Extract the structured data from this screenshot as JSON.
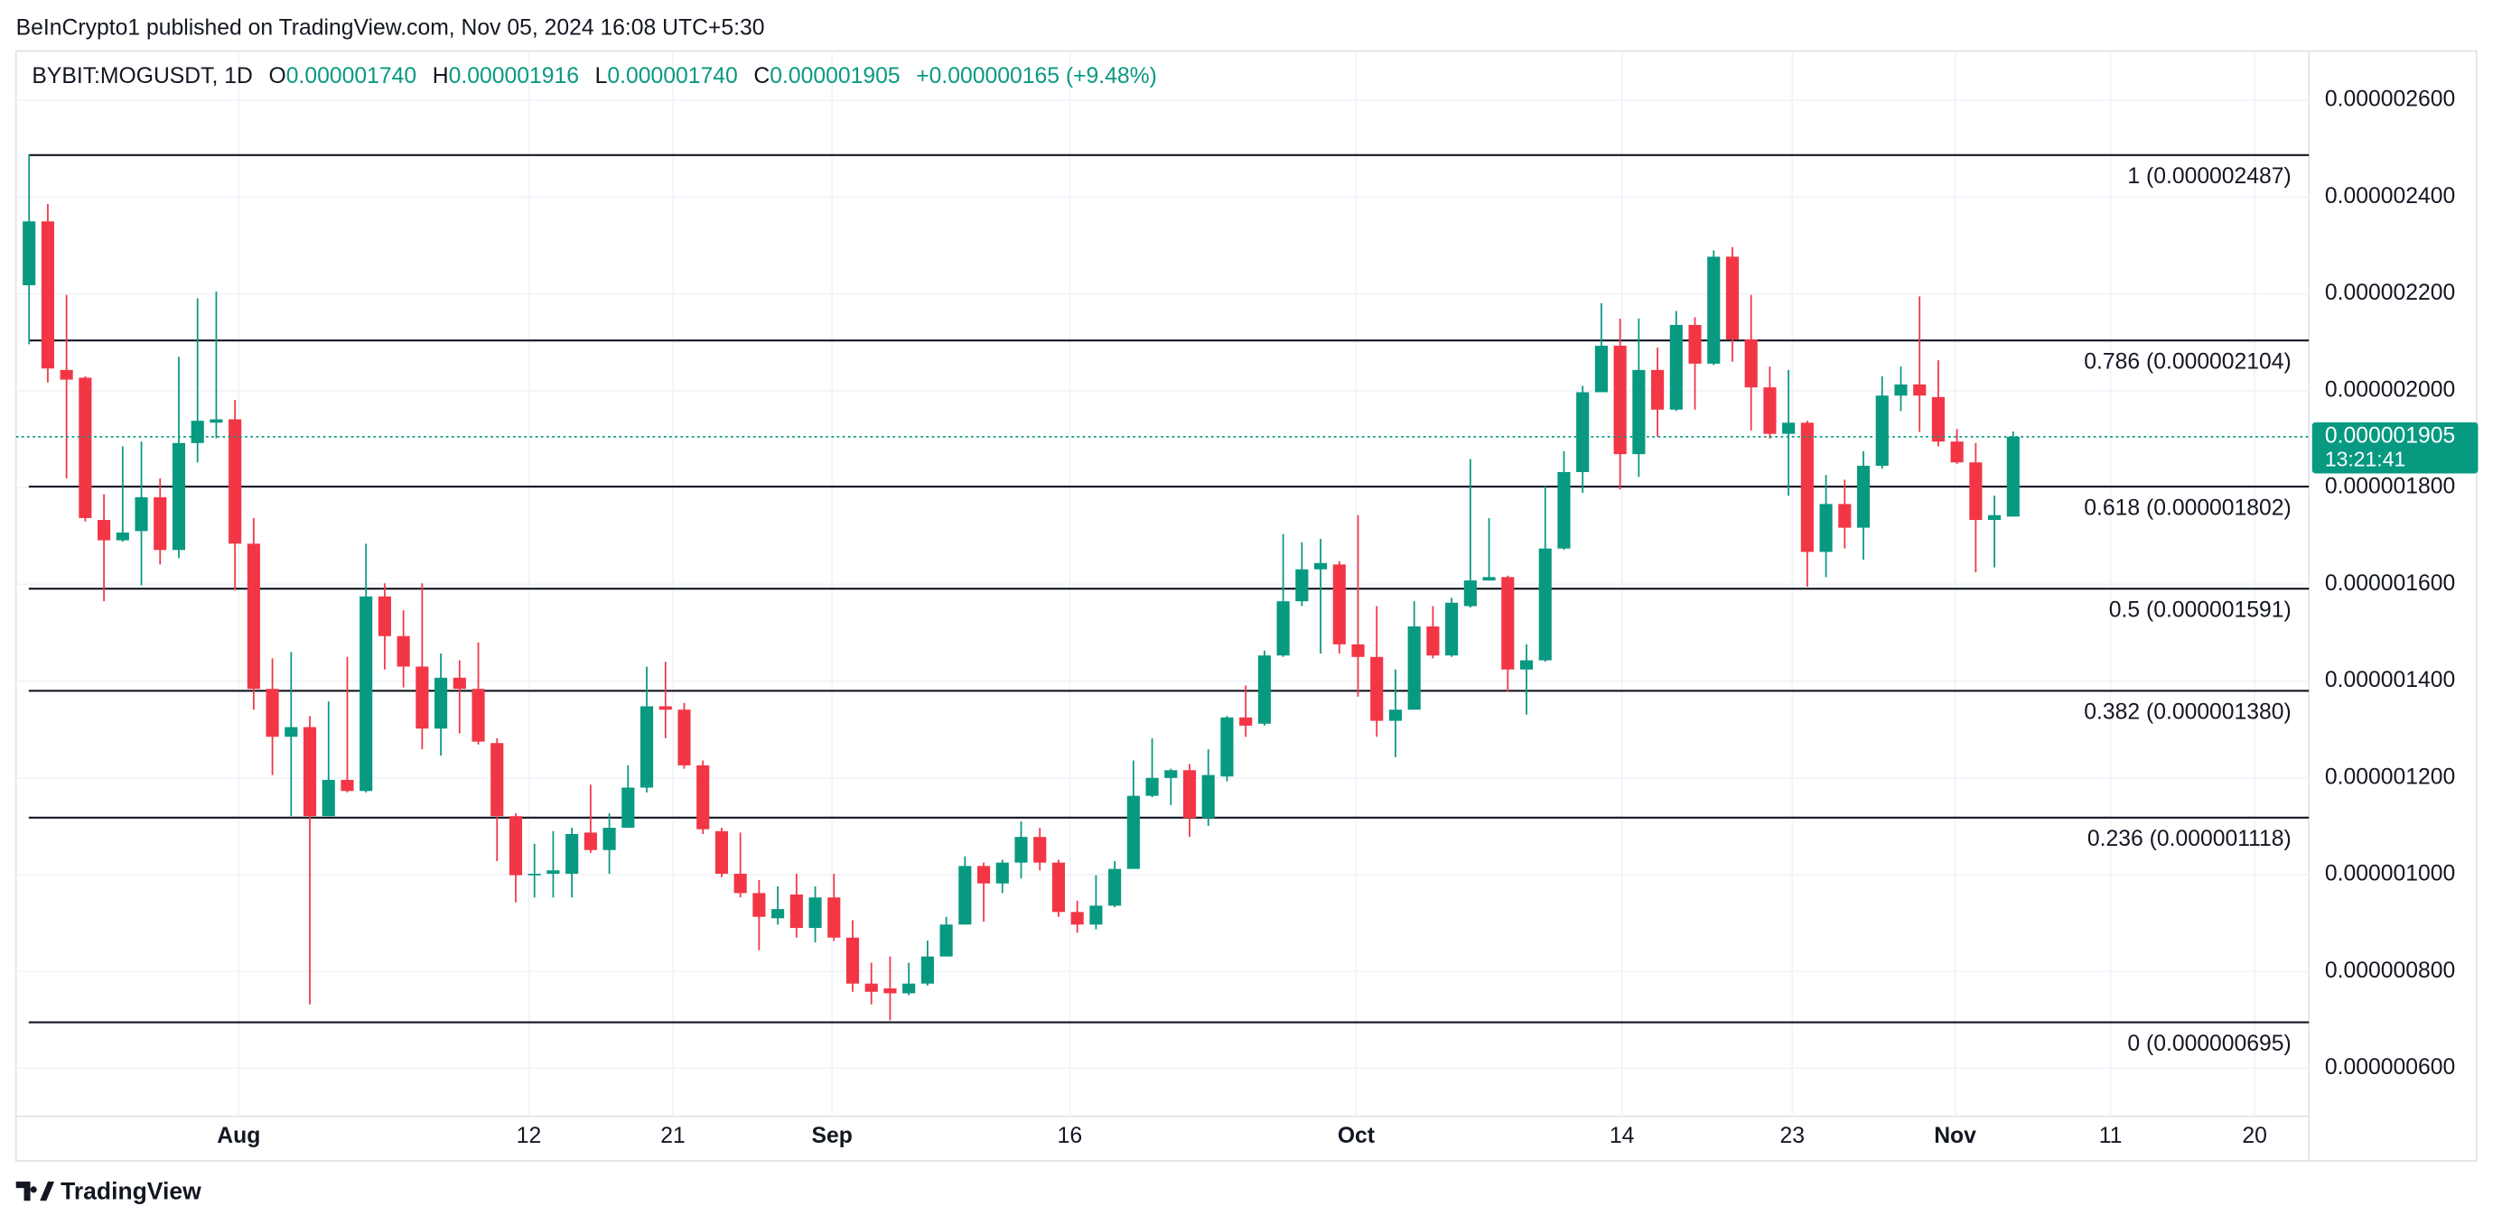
{
  "chart_data": {
    "type": "candlestick",
    "published_by": "BeInCrypto1 published on TradingView.com, Nov 05, 2024 16:08 UTC+5:30",
    "legend": {
      "symbol": "BYBIT:MOGUSDT, 1D",
      "o_label": "O",
      "o": "0.000001740",
      "h_label": "H",
      "h": "0.000001916",
      "l_label": "L",
      "l": "0.000001740",
      "c_label": "C",
      "c": "0.000001905",
      "change": "+0.000000165 (+9.48%)"
    },
    "footer": "TradingView",
    "up_color": "#089981",
    "down_color": "#f23645",
    "grid": true,
    "xlim": [
      -0.7,
      121.8
    ],
    "xticks": [
      {
        "value": 11.2,
        "label": "Aug"
      },
      {
        "value": 26.7,
        "label": "12"
      },
      {
        "value": 34.4,
        "label": "21"
      },
      {
        "value": 42.9,
        "label": "Sep"
      },
      {
        "value": 55.6,
        "label": "16"
      },
      {
        "value": 70.9,
        "label": "Oct"
      },
      {
        "value": 85.1,
        "label": "14"
      },
      {
        "value": 94.2,
        "label": "23"
      },
      {
        "value": 102.9,
        "label": "Nov"
      },
      {
        "value": 111.2,
        "label": "11"
      },
      {
        "value": 118.9,
        "label": "20"
      }
    ],
    "ylim": [
      5.01e-07,
      2.702e-06
    ],
    "yticks": [
      {
        "value": 6e-07,
        "label": "0.000000600"
      },
      {
        "value": 8e-07,
        "label": "0.000000800"
      },
      {
        "value": 1e-06,
        "label": "0.000001000"
      },
      {
        "value": 1.2e-06,
        "label": "0.000001200"
      },
      {
        "value": 1.4e-06,
        "label": "0.000001400"
      },
      {
        "value": 1.6e-06,
        "label": "0.000001600"
      },
      {
        "value": 1.8e-06,
        "label": "0.000001800"
      },
      {
        "value": 2e-06,
        "label": "0.000002000"
      },
      {
        "value": 2.2e-06,
        "label": "0.000002200"
      },
      {
        "value": 2.4e-06,
        "label": "0.000002400"
      },
      {
        "value": 2.6e-06,
        "label": "0.000002600"
      }
    ],
    "fib_levels": [
      {
        "value": 2.487e-06,
        "label": "1 (0.000002487)"
      },
      {
        "value": 2.104e-06,
        "label": "0.786 (0.000002104)"
      },
      {
        "value": 1.802e-06,
        "label": "0.618 (0.000001802)"
      },
      {
        "value": 1.591e-06,
        "label": "0.5 (0.000001591)"
      },
      {
        "value": 1.38e-06,
        "label": "0.382 (0.000001380)"
      },
      {
        "value": 1.118e-06,
        "label": "0.236 (0.000001118)"
      },
      {
        "value": 6.95e-07,
        "label": "0 (0.000000695)"
      }
    ],
    "current_price": {
      "value": 1.905e-06,
      "label": "0.000001905"
    },
    "countdown": "13:21:41",
    "open": [
      2.218e-06,
      2.35e-06,
      2.043e-06,
      2.027e-06,
      1.733e-06,
      1.691e-06,
      1.71e-06,
      1.78e-06,
      1.671e-06,
      1.892e-06,
      1.934e-06,
      1.941e-06,
      1.684e-06,
      1.384e-06,
      1.285e-06,
      1.305e-06,
      1.121e-06,
      1.196e-06,
      1.173e-06,
      1.575e-06,
      1.493e-06,
      1.43e-06,
      1.302e-06,
      1.407e-06,
      1.384e-06,
      1.272e-06,
      1.121e-06,
      9.99e-07,
      1.002e-06,
      1.002e-06,
      1.087e-06,
      1.051e-06,
      1.097e-06,
      1.18e-06,
      1.348e-06,
      1.341e-06,
      1.226e-06,
      1.09e-06,
      1.002e-06,
      9.62e-07,
      9.1e-07,
      9.59e-07,
      8.9e-07,
      9.53e-07,
      8.7e-07,
      7.75e-07,
      7.65e-07,
      7.55e-07,
      7.75e-07,
      8.31e-07,
      8.97e-07,
      1.018e-06,
      9.82e-07,
      1.025e-06,
      1.078e-06,
      1.025e-06,
      9.23e-07,
      8.97e-07,
      9.36e-07,
      1.012e-06,
      1.163e-06,
      1.2e-06,
      1.216e-06,
      1.117e-06,
      1.203e-06,
      1.325e-06,
      1.312e-06,
      1.453e-06,
      1.565e-06,
      1.631e-06,
      1.641e-06,
      1.476e-06,
      1.45e-06,
      1.318e-06,
      1.341e-06,
      1.513e-06,
      1.453e-06,
      1.555e-06,
      1.608e-06,
      1.615e-06,
      1.424e-06,
      1.443e-06,
      1.674e-06,
      1.832e-06,
      1.997e-06,
      2.093e-06,
      1.869e-06,
      2.043e-06,
      1.961e-06,
      2.136e-06,
      2.056e-06,
      2.277e-06,
      2.106e-06,
      2.007e-06,
      1.911e-06,
      1.934e-06,
      1.667e-06,
      1.766e-06,
      1.717e-06,
      1.845e-06,
      1.99e-06,
      2.013e-06,
      1.987e-06,
      1.895e-06,
      1.852e-06,
      1.733e-06,
      1.74e-06
    ],
    "high": [
      2.488e-06,
      2.386e-06,
      2.198e-06,
      2.03e-06,
      1.786e-06,
      1.885e-06,
      1.895e-06,
      1.819e-06,
      2.07e-06,
      2.191e-06,
      2.205e-06,
      1.981e-06,
      1.737e-06,
      1.447e-06,
      1.46e-06,
      1.328e-06,
      1.358e-06,
      1.45e-06,
      1.684e-06,
      1.602e-06,
      1.546e-06,
      1.602e-06,
      1.457e-06,
      1.443e-06,
      1.48e-06,
      1.282e-06,
      1.127e-06,
      1.064e-06,
      1.09e-06,
      1.097e-06,
      1.186e-06,
      1.127e-06,
      1.226e-06,
      1.43e-06,
      1.44e-06,
      1.355e-06,
      1.236e-06,
      1.097e-06,
      1.087e-06,
      9.89e-07,
      9.76e-07,
      1.002e-06,
      9.76e-07,
      1.002e-06,
      9.06e-07,
      8.18e-07,
      8.31e-07,
      8.18e-07,
      8.64e-07,
      9.13e-07,
      1.038e-06,
      1.025e-06,
      1.031e-06,
      1.11e-06,
      1.097e-06,
      1.031e-06,
      9.46e-07,
      9.99e-07,
      1.028e-06,
      1.236e-06,
      1.282e-06,
      1.219e-06,
      1.229e-06,
      1.259e-06,
      1.328e-06,
      1.391e-06,
      1.463e-06,
      1.704e-06,
      1.687e-06,
      1.694e-06,
      1.648e-06,
      1.743e-06,
      1.555e-06,
      1.424e-06,
      1.565e-06,
      1.555e-06,
      1.572e-06,
      1.859e-06,
      1.737e-06,
      1.618e-06,
      1.476e-06,
      1.803e-06,
      1.875e-06,
      2.01e-06,
      2.181e-06,
      2.149e-06,
      2.149e-06,
      2.089e-06,
      2.165e-06,
      2.152e-06,
      2.29e-06,
      2.297e-06,
      2.198e-06,
      2.05e-06,
      2.043e-06,
      1.938e-06,
      1.826e-06,
      1.816e-06,
      1.875e-06,
      2.03e-06,
      2.05e-06,
      2.195e-06,
      2.063e-06,
      1.921e-06,
      1.892e-06,
      1.783e-06,
      1.916e-06
    ],
    "low": [
      2.096e-06,
      2.017e-06,
      1.819e-06,
      1.73e-06,
      1.565e-06,
      1.688e-06,
      1.598e-06,
      1.641e-06,
      1.654e-06,
      1.852e-06,
      1.902e-06,
      1.588e-06,
      1.341e-06,
      1.206e-06,
      1.121e-06,
      7.32e-07,
      1.121e-06,
      1.17e-06,
      1.17e-06,
      1.424e-06,
      1.387e-06,
      1.259e-06,
      1.246e-06,
      1.292e-06,
      1.269e-06,
      1.028e-06,
      9.43e-07,
      9.53e-07,
      9.53e-07,
      9.53e-07,
      1.045e-06,
      1.002e-06,
      1.097e-06,
      1.17e-06,
      1.282e-06,
      1.219e-06,
      1.084e-06,
      9.95e-07,
      9.53e-07,
      8.44e-07,
      8.97e-07,
      8.7e-07,
      8.6e-07,
      8.63e-07,
      7.58e-07,
      7.32e-07,
      6.99e-07,
      7.51e-07,
      7.71e-07,
      8.31e-07,
      8.97e-07,
      9.03e-07,
      9.62e-07,
      9.92e-07,
      1.009e-06,
      9.13e-07,
      8.8e-07,
      8.87e-07,
      9.33e-07,
      1.012e-06,
      1.16e-06,
      1.144e-06,
      1.078e-06,
      1.101e-06,
      1.193e-06,
      1.285e-06,
      1.308e-06,
      1.45e-06,
      1.555e-06,
      1.457e-06,
      1.457e-06,
      1.368e-06,
      1.285e-06,
      1.243e-06,
      1.341e-06,
      1.447e-06,
      1.45e-06,
      1.552e-06,
      1.608e-06,
      1.378e-06,
      1.331e-06,
      1.44e-06,
      1.671e-06,
      1.789e-06,
      1.997e-06,
      1.796e-06,
      1.822e-06,
      1.905e-06,
      1.958e-06,
      1.961e-06,
      2.053e-06,
      2.06e-06,
      1.918e-06,
      1.901e-06,
      1.783e-06,
      1.595e-06,
      1.615e-06,
      1.674e-06,
      1.651e-06,
      1.839e-06,
      1.958e-06,
      1.915e-06,
      1.885e-06,
      1.849e-06,
      1.625e-06,
      1.635e-06,
      1.74e-06
    ],
    "close": [
      2.35e-06,
      2.046e-06,
      2.023e-06,
      1.737e-06,
      1.691e-06,
      1.707e-06,
      1.78e-06,
      1.671e-06,
      1.892e-06,
      1.938e-06,
      1.941e-06,
      1.684e-06,
      1.384e-06,
      1.285e-06,
      1.305e-06,
      1.121e-06,
      1.196e-06,
      1.173e-06,
      1.575e-06,
      1.493e-06,
      1.43e-06,
      1.302e-06,
      1.407e-06,
      1.384e-06,
      1.275e-06,
      1.121e-06,
      9.99e-07,
      1.002e-06,
      1.009e-06,
      1.084e-06,
      1.051e-06,
      1.097e-06,
      1.18e-06,
      1.348e-06,
      1.341e-06,
      1.226e-06,
      1.094e-06,
      1.002e-06,
      9.62e-07,
      9.13e-07,
      9.29e-07,
      8.9e-07,
      9.53e-07,
      8.7e-07,
      7.75e-07,
      7.58e-07,
      7.55e-07,
      7.75e-07,
      8.31e-07,
      8.97e-07,
      1.018e-06,
      9.82e-07,
      1.025e-06,
      1.078e-06,
      1.025e-06,
      9.23e-07,
      8.97e-07,
      9.36e-07,
      1.012e-06,
      1.163e-06,
      1.2e-06,
      1.216e-06,
      1.117e-06,
      1.206e-06,
      1.325e-06,
      1.308e-06,
      1.453e-06,
      1.565e-06,
      1.631e-06,
      1.644e-06,
      1.476e-06,
      1.45e-06,
      1.318e-06,
      1.341e-06,
      1.513e-06,
      1.453e-06,
      1.562e-06,
      1.608e-06,
      1.615e-06,
      1.424e-06,
      1.443e-06,
      1.674e-06,
      1.832e-06,
      1.997e-06,
      2.093e-06,
      1.869e-06,
      2.043e-06,
      1.961e-06,
      2.136e-06,
      2.056e-06,
      2.277e-06,
      2.106e-06,
      2.007e-06,
      1.911e-06,
      1.934e-06,
      1.667e-06,
      1.766e-06,
      1.717e-06,
      1.845e-06,
      1.99e-06,
      2.013e-06,
      1.99e-06,
      1.895e-06,
      1.852e-06,
      1.733e-06,
      1.743e-06,
      1.905e-06
    ]
  }
}
